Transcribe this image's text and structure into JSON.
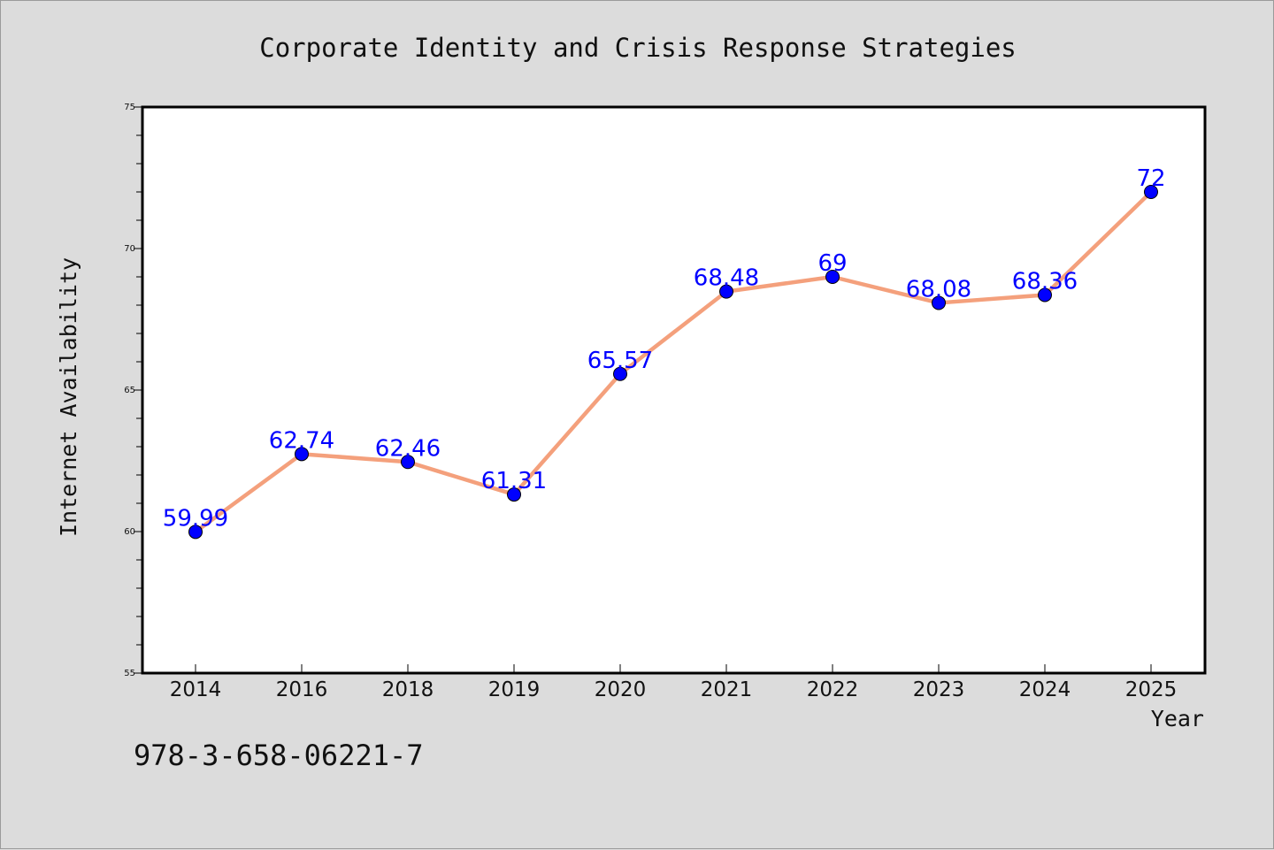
{
  "chart_data": {
    "type": "line",
    "title": "Corporate Identity and Crisis Response Strategies",
    "xlabel": "Year",
    "ylabel": "Internet Availability",
    "categories": [
      "2014",
      "2016",
      "2018",
      "2019",
      "2020",
      "2021",
      "2022",
      "2023",
      "2024",
      "2025"
    ],
    "series": [
      {
        "values": [
          59.99,
          62.74,
          62.46,
          61.31,
          65.57,
          68.48,
          69,
          68.08,
          68.36,
          72
        ],
        "data_labels": [
          "59.99",
          "62.74",
          "62.46",
          "61.31",
          "65.57",
          "68.48",
          "69",
          "68.08",
          "68.36",
          "72"
        ]
      }
    ],
    "ylim": [
      55,
      75
    ],
    "yticks": [
      "55",
      "60",
      "65",
      "70",
      "75"
    ],
    "grid": false,
    "colors": {
      "line": "#f4a07c",
      "marker": "#0000ff",
      "data_label": "#0000ff",
      "background": "#dcdcdc",
      "plot_background": "#ffffff"
    }
  },
  "footer": {
    "isbn": "978-3-658-06221-7"
  }
}
